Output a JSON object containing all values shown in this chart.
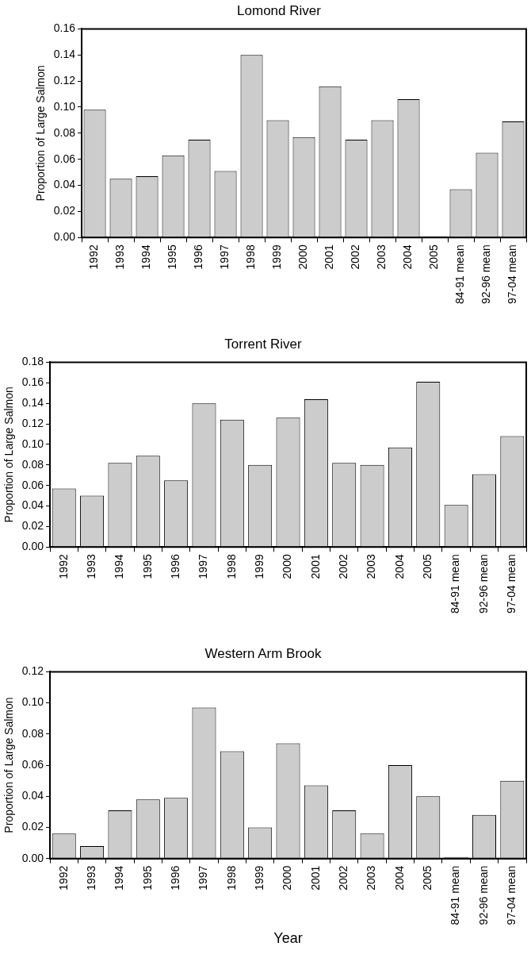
{
  "chart_data": [
    {
      "type": "bar",
      "title": "Lomond River",
      "ylabel": "Proportion of Large Salmon",
      "categories": [
        "1992",
        "1993",
        "1994",
        "1995",
        "1996",
        "1997",
        "1998",
        "1999",
        "2000",
        "2001",
        "2002",
        "2003",
        "2004",
        "2005",
        "84-91 mean",
        "92-96 mean",
        "97-04 mean"
      ],
      "values": [
        0.098,
        0.045,
        0.047,
        0.063,
        0.075,
        0.051,
        0.14,
        0.09,
        0.077,
        0.116,
        0.075,
        0.09,
        0.106,
        0,
        0.037,
        0.065,
        0.089
      ],
      "color": "#cccccc",
      "ylim": [
        0,
        0.16
      ],
      "yticks": [
        {
          "value": 0,
          "label": "0.00"
        },
        {
          "value": 0.02,
          "label": "0.02"
        },
        {
          "value": 0.04,
          "label": "0.04"
        },
        {
          "value": 0.06,
          "label": "0.06"
        },
        {
          "value": 0.08,
          "label": "0.08"
        },
        {
          "value": 0.1,
          "label": "0.10"
        },
        {
          "value": 0.12,
          "label": "0.12"
        },
        {
          "value": 0.14,
          "label": "0.14"
        },
        {
          "value": 0.16,
          "label": "0.16"
        }
      ],
      "grid": false,
      "legend": false
    },
    {
      "type": "bar",
      "title": "Torrent River",
      "ylabel": "Proportion of Large Salmon",
      "categories": [
        "1992",
        "1993",
        "1994",
        "1995",
        "1996",
        "1997",
        "1998",
        "1999",
        "2000",
        "2001",
        "2002",
        "2003",
        "2004",
        "2005",
        "84-91 mean",
        "92-96 mean",
        "97-04 mean"
      ],
      "values": [
        0.057,
        0.05,
        0.082,
        0.089,
        0.065,
        0.14,
        0.124,
        0.08,
        0.126,
        0.144,
        0.082,
        0.08,
        0.097,
        0.161,
        0.041,
        0.071,
        0.108
      ],
      "color": "#cccccc",
      "ylim": [
        0,
        0.18
      ],
      "yticks": [
        {
          "value": 0,
          "label": "0.00"
        },
        {
          "value": 0.02,
          "label": "0.02"
        },
        {
          "value": 0.04,
          "label": "0.04"
        },
        {
          "value": 0.06,
          "label": "0.06"
        },
        {
          "value": 0.08,
          "label": "0.08"
        },
        {
          "value": 0.1,
          "label": "0.10"
        },
        {
          "value": 0.12,
          "label": "0.12"
        },
        {
          "value": 0.14,
          "label": "0.14"
        },
        {
          "value": 0.16,
          "label": "0.16"
        },
        {
          "value": 0.18,
          "label": "0.18"
        }
      ],
      "grid": false,
      "legend": false
    },
    {
      "type": "bar",
      "title": "Western Arm Brook",
      "xlabel": "Year",
      "ylabel": "Proportion of Large Salmon",
      "categories": [
        "1992",
        "1993",
        "1994",
        "1995",
        "1996",
        "1997",
        "1998",
        "1999",
        "2000",
        "2001",
        "2002",
        "2003",
        "2004",
        "2005",
        "84-91 mean",
        "92-96 mean",
        "97-04 mean"
      ],
      "values": [
        0.016,
        0.008,
        0.031,
        0.038,
        0.039,
        0.097,
        0.069,
        0.02,
        0.074,
        0.047,
        0.031,
        0.016,
        0.06,
        0.04,
        0.001,
        0.028,
        0.05
      ],
      "color": "#cccccc",
      "ylim": [
        0,
        0.12
      ],
      "yticks": [
        {
          "value": 0,
          "label": "0.00"
        },
        {
          "value": 0.02,
          "label": "0.02"
        },
        {
          "value": 0.04,
          "label": "0.04"
        },
        {
          "value": 0.06,
          "label": "0.06"
        },
        {
          "value": 0.08,
          "label": "0.08"
        },
        {
          "value": 0.1,
          "label": "0.10"
        },
        {
          "value": 0.12,
          "label": "0.12"
        }
      ],
      "grid": false,
      "legend": false
    }
  ]
}
